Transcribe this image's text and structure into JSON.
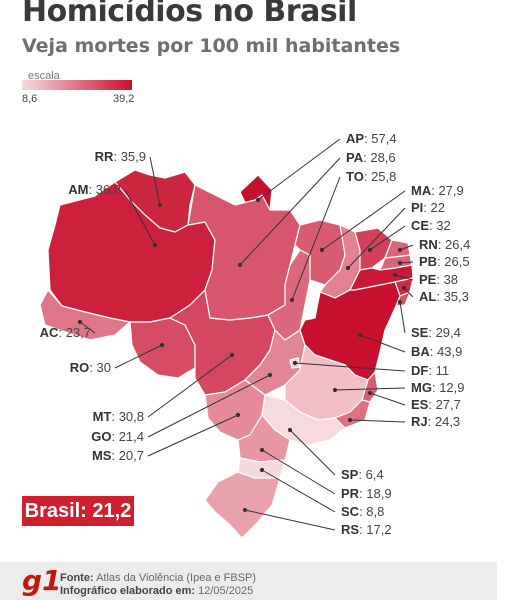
{
  "title": "Homicídios no Brasil",
  "subtitle": "Veja mortes por 100 mil habitantes",
  "scale": {
    "label": "escala",
    "min": "8,6",
    "max": "39,2",
    "min_color": "#f6dadd",
    "max_color": "#c8102e"
  },
  "brasil": {
    "label": "Brasil: 21,2",
    "color": "#d21f2d"
  },
  "states": [
    {
      "code": "RR",
      "value": "35,9"
    },
    {
      "code": "AM",
      "value": "36,8"
    },
    {
      "code": "AC",
      "value": "23,7"
    },
    {
      "code": "RO",
      "value": "30"
    },
    {
      "code": "MT",
      "value": "30,8"
    },
    {
      "code": "GO",
      "value": "21,4"
    },
    {
      "code": "MS",
      "value": "20,7"
    },
    {
      "code": "AP",
      "value": "57,4"
    },
    {
      "code": "PA",
      "value": "28,6"
    },
    {
      "code": "TO",
      "value": "25,8"
    },
    {
      "code": "MA",
      "value": "27,9"
    },
    {
      "code": "PI",
      "value": "22"
    },
    {
      "code": "CE",
      "value": "32"
    },
    {
      "code": "RN",
      "value": "26,4"
    },
    {
      "code": "PB",
      "value": "26,5"
    },
    {
      "code": "PE",
      "value": "38"
    },
    {
      "code": "AL",
      "value": "35,3"
    },
    {
      "code": "SE",
      "value": "29,4"
    },
    {
      "code": "BA",
      "value": "43,9"
    },
    {
      "code": "DF",
      "value": "11"
    },
    {
      "code": "MG",
      "value": "12,9"
    },
    {
      "code": "ES",
      "value": "27,7"
    },
    {
      "code": "RJ",
      "value": "24,3"
    },
    {
      "code": "SP",
      "value": "6,4"
    },
    {
      "code": "PR",
      "value": "18,9"
    },
    {
      "code": "SC",
      "value": "8,8"
    },
    {
      "code": "RS",
      "value": "17,2"
    }
  ],
  "footer": {
    "logo": "g1",
    "source_label": "Fonte:",
    "source_text": "Atlas da Violência (Ipea e FBSP)",
    "made_label": "Infográfico elaborado em:",
    "made_text": "12/05/2025"
  }
}
